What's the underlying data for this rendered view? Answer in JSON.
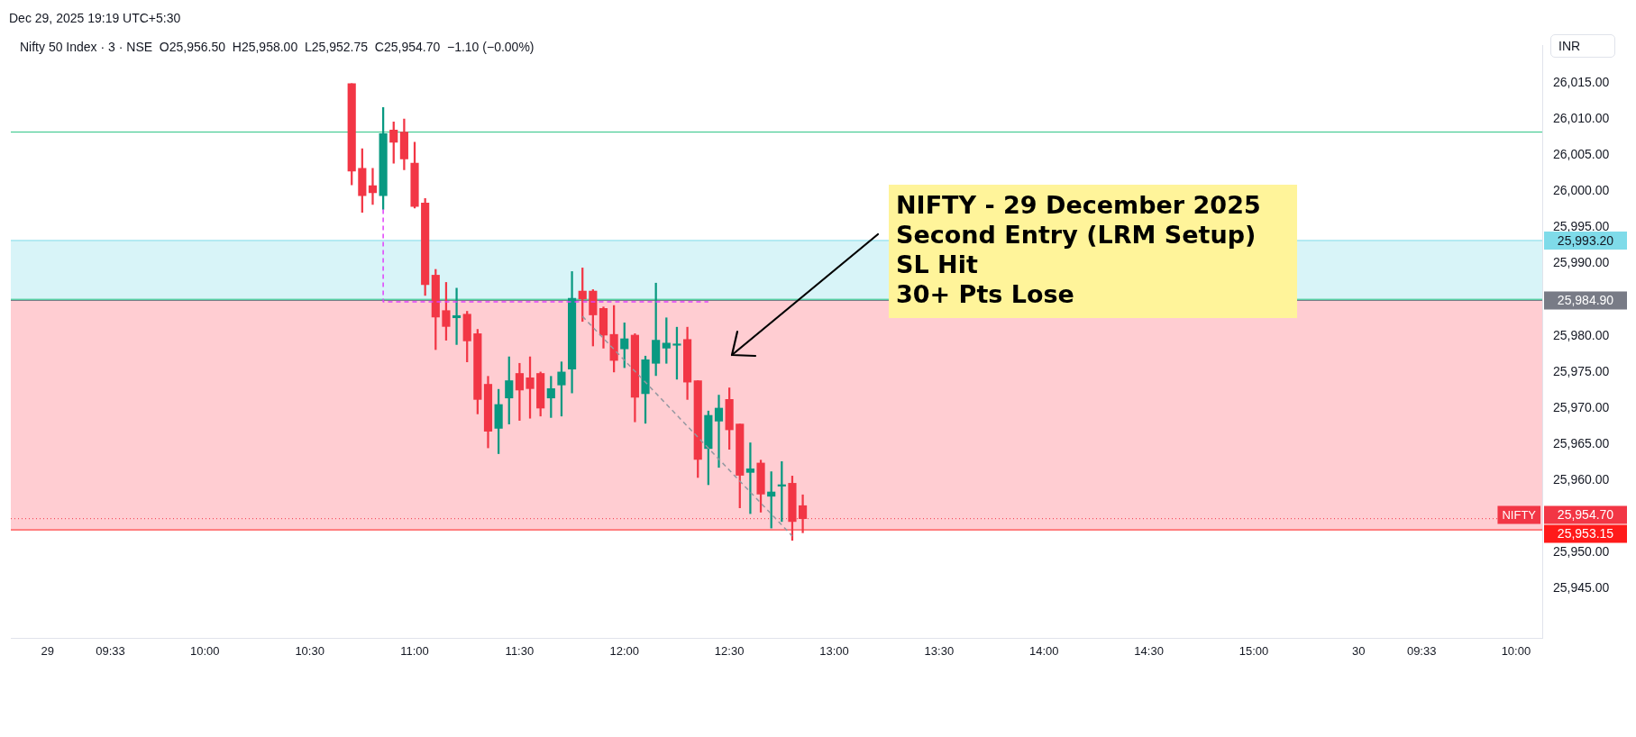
{
  "chart_data": {
    "type": "candlestick",
    "subtitle": "Nifty 50 Index · 3 · NSE  O25,956.50  H25,958.00  L25,952.75  C25,954.70  −1.10 (−0.00%)",
    "ylabel": "INR",
    "annotations": [
      "Dec 29, 2025 19:19 UTC+5:30",
      "NIFTY - 29 December 2025\nSecond Entry (LRM Setup)\nSL Hit\n30+ Pts Lose",
      "NIFTY"
    ],
    "categories": [
      null,
      null,
      null,
      "29",
      null,
      null,
      null,
      null,
      null,
      "09:33",
      null,
      null,
      null,
      null,
      null,
      null,
      null,
      null,
      "10:00",
      null,
      null,
      null,
      null,
      null,
      null,
      null,
      null,
      null,
      "10:30",
      null,
      null,
      null,
      null,
      null,
      null,
      null,
      null,
      null,
      "11:00",
      null,
      null,
      null,
      null,
      null,
      null,
      null,
      null,
      null,
      "11:30",
      null,
      null,
      null,
      null,
      null,
      null,
      null,
      null,
      null,
      "12:00",
      null,
      null,
      null,
      null,
      null,
      null,
      null,
      null,
      null,
      "12:30",
      null,
      null,
      null,
      null,
      null,
      null,
      null,
      null,
      null,
      "13:00",
      null,
      null,
      null,
      null,
      null,
      null,
      null,
      null,
      null,
      "13:30",
      null,
      null,
      null,
      null,
      null,
      null,
      null,
      null,
      null,
      "14:00",
      null,
      null,
      null,
      null,
      null,
      null,
      null,
      null,
      null,
      "14:30",
      null,
      null,
      null,
      null,
      null,
      null,
      null,
      null,
      null,
      "15:00",
      null,
      null,
      null,
      null,
      null,
      null,
      null,
      null,
      null,
      "30",
      null,
      null,
      null,
      null,
      null,
      "09:33",
      null,
      null,
      null,
      null,
      null,
      null,
      null,
      null,
      "10:00",
      null,
      null
    ],
    "ohlc": [
      null,
      null,
      null,
      null,
      null,
      null,
      null,
      null,
      null,
      null,
      null,
      null,
      null,
      null,
      null,
      null,
      null,
      null,
      null,
      null,
      null,
      null,
      null,
      null,
      null,
      null,
      null,
      null,
      null,
      null,
      null,
      null,
      [
        26014.9,
        26014.9,
        26000.9,
        26002.8
      ],
      [
        26003.2,
        26005.9,
        25997.1,
        25999.4
      ],
      [
        26000.8,
        26003.2,
        25998.2,
        25999.8
      ],
      [
        25999.4,
        26011.6,
        25997.5,
        26008.0
      ],
      [
        26008.5,
        26009.6,
        26003.9,
        26006.8
      ],
      [
        26008.2,
        26010.0,
        26003.0,
        26004.5
      ],
      [
        26003.9,
        26006.8,
        25997.7,
        25997.9
      ],
      [
        25998.4,
        25999.0,
        25985.6,
        25987.1
      ],
      [
        25988.4,
        25989.2,
        25978.1,
        25982.6
      ],
      [
        25983.5,
        25987.4,
        25979.4,
        25981.3
      ],
      [
        25982.5,
        25986.6,
        25978.8,
        25982.8
      ],
      [
        25983.0,
        25983.4,
        25976.4,
        25979.3
      ],
      [
        25980.3,
        25980.9,
        25969.2,
        25971.2
      ],
      [
        25973.3,
        25974.4,
        25964.5,
        25966.8
      ],
      [
        25967.2,
        25972.6,
        25963.7,
        25970.5
      ],
      [
        25971.4,
        25977.1,
        25967.8,
        25973.8
      ],
      [
        25974.8,
        25976.2,
        25968.3,
        25972.5
      ],
      [
        25974.2,
        25977.1,
        25968.6,
        25972.7
      ],
      [
        25974.8,
        25975.0,
        25968.9,
        25970.0
      ],
      [
        25971.4,
        25974.4,
        25968.7,
        25972.7
      ],
      [
        25973.2,
        25976.4,
        25968.9,
        25975.0
      ],
      [
        25975.4,
        25988.9,
        25972.1,
        25985.2
      ],
      [
        25986.2,
        25989.4,
        25982.0,
        25985.1
      ],
      [
        25986.2,
        25986.4,
        25978.6,
        25982.9
      ],
      [
        25983.8,
        25984.0,
        25978.3,
        25980.1
      ],
      [
        25980.2,
        25984.2,
        25975.0,
        25976.6
      ],
      [
        25978.2,
        25981.8,
        25975.6,
        25979.6
      ],
      [
        25980.1,
        25980.3,
        25968.1,
        25971.5
      ],
      [
        25972.0,
        25977.2,
        25967.9,
        25976.7
      ],
      [
        25976.2,
        25987.3,
        25974.5,
        25979.4
      ],
      [
        25978.3,
        25982.5,
        25976.2,
        25979.0
      ],
      [
        25978.7,
        25981.2,
        25974.0,
        25978.8
      ],
      [
        25979.5,
        25981.2,
        25971.2,
        25973.6
      ],
      [
        25973.8,
        25973.8,
        25960.4,
        25962.9
      ],
      [
        25964.4,
        25969.6,
        25959.4,
        25969.0
      ],
      [
        25968.2,
        25971.8,
        25961.8,
        25970.0
      ],
      [
        25971.2,
        25972.8,
        25964.3,
        25967.0
      ],
      [
        25967.8,
        25967.8,
        25956.2,
        25960.7
      ],
      [
        25961.1,
        25965.2,
        25955.4,
        25961.6
      ],
      [
        25962.4,
        25962.8,
        25955.6,
        25958.1
      ],
      [
        25957.8,
        25961.2,
        25953.4,
        25958.4
      ],
      [
        25959.2,
        25962.6,
        25954.3,
        25959.4
      ],
      [
        25959.6,
        25960.6,
        25951.7,
        25954.3
      ],
      [
        25956.5,
        25958.0,
        25952.75,
        25954.7
      ],
      null,
      null,
      null,
      null,
      null,
      null,
      null,
      null,
      null,
      null,
      null,
      null,
      null,
      null,
      null,
      null,
      null,
      null,
      null,
      null,
      null,
      null,
      null,
      null,
      null,
      null,
      null,
      null,
      null,
      null,
      null,
      null,
      null,
      null,
      null,
      null,
      null,
      null,
      null,
      null,
      null,
      null,
      null,
      null,
      null,
      null,
      null,
      null,
      null,
      null,
      null,
      null,
      null,
      null,
      null,
      null,
      null,
      null,
      null,
      null,
      null,
      null,
      null,
      null,
      null,
      null,
      null,
      null,
      null,
      null
    ],
    "colors": [
      null,
      null,
      null,
      null,
      null,
      null,
      null,
      null,
      null,
      null,
      null,
      null,
      null,
      null,
      null,
      null,
      null,
      null,
      null,
      null,
      null,
      null,
      null,
      null,
      null,
      null,
      null,
      null,
      null,
      null,
      null,
      null,
      "#f23645",
      "#f23645",
      "#f23645",
      "#089981",
      "#f23645",
      "#f23645",
      "#f23645",
      "#f23645",
      "#f23645",
      "#f23645",
      "#089981",
      "#f23645",
      "#f23645",
      "#f23645",
      "#089981",
      "#089981",
      "#f23645",
      "#f23645",
      "#f23645",
      "#089981",
      "#089981",
      "#089981",
      "#f23645",
      "#f23645",
      "#f23645",
      "#f23645",
      "#089981",
      "#f23645",
      "#089981",
      "#089981",
      "#089981",
      "#089981",
      "#f23645",
      "#f23645",
      "#089981",
      "#089981",
      "#f23645",
      "#f23645",
      "#089981",
      "#f23645",
      "#089981",
      "#089981",
      "#f23645",
      "#f23645",
      null,
      null,
      null,
      null,
      null,
      null,
      null,
      null,
      null,
      null,
      null,
      null,
      null,
      null,
      null,
      null,
      null,
      null,
      null,
      null,
      null,
      null,
      null,
      null,
      null,
      null,
      null,
      null,
      null,
      null,
      null,
      null,
      null,
      null,
      null,
      null,
      null,
      null,
      null,
      null,
      null,
      null,
      null,
      null,
      null,
      null,
      null,
      null,
      null,
      null,
      null,
      null,
      null,
      null,
      null,
      null,
      null,
      null,
      null,
      null,
      null,
      null,
      null,
      null,
      null,
      null,
      null,
      null,
      null,
      null
    ],
    "series": [
      {
        "type": "line",
        "color": "#9598a1",
        "line_style": "dashed",
        "values": [
          null,
          null,
          null,
          null,
          null,
          null,
          null,
          null,
          null,
          null,
          null,
          null,
          null,
          null,
          null,
          null,
          null,
          null,
          null,
          null,
          null,
          null,
          null,
          null,
          null,
          null,
          null,
          null,
          null,
          null,
          null,
          null,
          null,
          null,
          null,
          null,
          null,
          null,
          null,
          null,
          null,
          null,
          null,
          null,
          null,
          null,
          null,
          null,
          null,
          null,
          null,
          null,
          null,
          null,
          25982.7,
          null,
          null,
          null,
          null,
          null,
          null,
          null,
          null,
          null,
          null,
          null,
          null,
          null,
          null,
          null,
          null,
          null,
          null,
          null,
          25952.3,
          null,
          null,
          null,
          null,
          null,
          null,
          null,
          null,
          null,
          null,
          null,
          null,
          null,
          null,
          null,
          null,
          null,
          null,
          null,
          null,
          null,
          null,
          null,
          null,
          null,
          null,
          null,
          null,
          null,
          null,
          null,
          null,
          null,
          null,
          null,
          null,
          null,
          null,
          null,
          null,
          null,
          null,
          null,
          null,
          null,
          null,
          null,
          null,
          null,
          null,
          null,
          null,
          null,
          null,
          null,
          null,
          null,
          null,
          null,
          null,
          null,
          null,
          null,
          null,
          null,
          null,
          null,
          null,
          null,
          null,
          null
        ]
      },
      {
        "type": "step",
        "color": "#e040fb",
        "line_style": "dashed",
        "values": [
          null,
          null,
          null,
          null,
          null,
          null,
          null,
          null,
          null,
          null,
          null,
          null,
          null,
          null,
          null,
          null,
          null,
          null,
          null,
          null,
          null,
          null,
          null,
          null,
          null,
          null,
          null,
          null,
          null,
          null,
          null,
          null,
          null,
          null,
          null,
          25997.5,
          null,
          null,
          null,
          null,
          null,
          null,
          null,
          null,
          null,
          null,
          null,
          null,
          null,
          null,
          null,
          null,
          null,
          null,
          null,
          null,
          null,
          null,
          null,
          null,
          null,
          null,
          null,
          null,
          null,
          null,
          25984.7,
          null,
          null,
          null,
          null,
          null,
          null,
          null,
          null,
          null,
          null,
          null,
          null,
          null,
          null,
          null,
          null,
          null,
          null,
          null,
          null,
          null,
          null,
          null,
          null,
          null,
          null,
          null,
          null,
          null,
          null,
          null,
          null,
          null,
          null,
          null,
          null,
          null,
          null,
          null,
          null,
          null,
          null,
          null,
          null,
          null,
          null,
          null,
          null,
          null,
          null,
          null,
          null,
          null,
          null,
          null,
          null,
          null,
          null,
          null,
          null,
          null,
          null,
          null,
          null,
          null,
          null,
          null,
          null,
          null,
          null,
          null,
          null,
          null,
          null,
          null,
          null,
          null,
          null,
          null
        ]
      }
    ],
    "bands": [
      {
        "axis": "y",
        "from": 25984.9,
        "to": 25993.2,
        "color": "#7fdbe9"
      },
      {
        "axis": "y",
        "from": 25953.15,
        "to": 25984.9,
        "color": "#ff5a6a"
      }
    ],
    "ref_lines": [
      {
        "axis": "y",
        "value": 26008.2,
        "color": "#26c281"
      },
      {
        "axis": "y",
        "value": 25985.06,
        "color": "#26c281"
      },
      {
        "axis": "y",
        "value": 25993.2,
        "label": "25,993.20",
        "color": "#7fdbe9"
      },
      {
        "axis": "y",
        "value": 25984.9,
        "label": "25,984.90",
        "color": "#787b86"
      },
      {
        "axis": "y",
        "value": 25954.7,
        "label": "25,954.70",
        "color": "#f23645",
        "line_style": "dotted"
      },
      {
        "axis": "y",
        "value": 25953.15,
        "label": "25,953.15",
        "color": "#ff1a1a"
      }
    ],
    "ylim": [
      25938.2,
      26020.2
    ],
    "yticks": [
      {
        "value": 25945,
        "label": "25,945.00"
      },
      {
        "value": 25950,
        "label": "25,950.00"
      },
      {
        "value": 25960,
        "label": "25,960.00"
      },
      {
        "value": 25965,
        "label": "25,965.00"
      },
      {
        "value": 25970,
        "label": "25,970.00"
      },
      {
        "value": 25975,
        "label": "25,975.00"
      },
      {
        "value": 25980,
        "label": "25,980.00"
      },
      {
        "value": 25990,
        "label": "25,990.00"
      },
      {
        "value": 25995,
        "label": "25,995.00"
      },
      {
        "value": 26000,
        "label": "26,000.00"
      },
      {
        "value": 26005,
        "label": "26,005.00"
      },
      {
        "value": 26010,
        "label": "26,010.00"
      },
      {
        "value": 26015,
        "label": "26,015.00"
      }
    ]
  }
}
